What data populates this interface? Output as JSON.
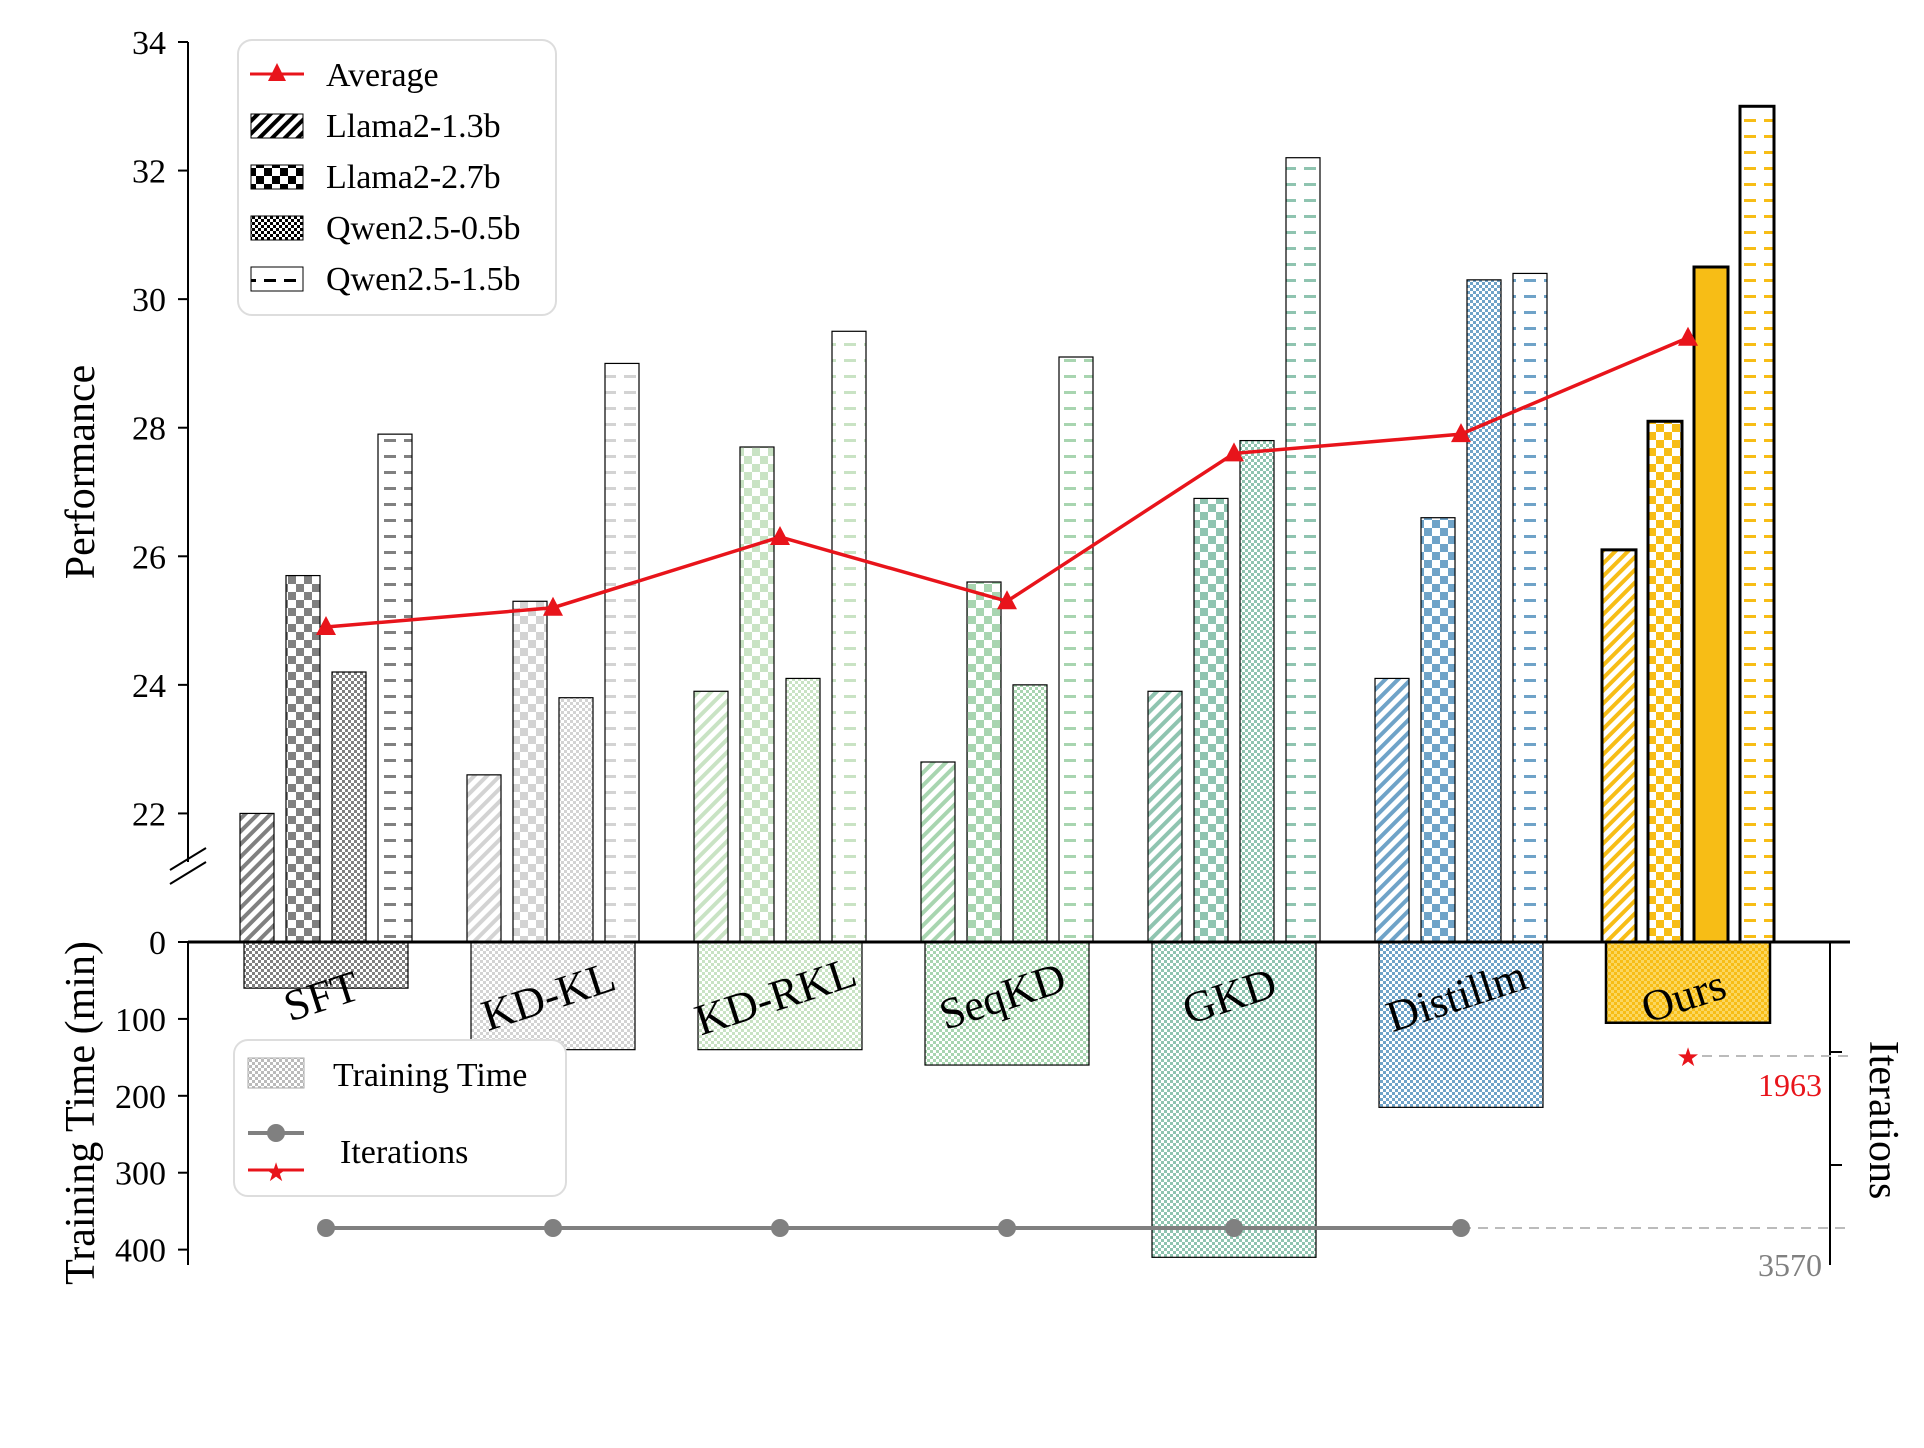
{
  "chart_data": {
    "type": "bar",
    "categories": [
      "SFT",
      "KD-KL",
      "KD-RKL",
      "SeqKD",
      "GKD",
      "Distillm",
      "Ours"
    ],
    "category_colors": [
      "#808080",
      "#d3d3d3",
      "#c9e3c4",
      "#a8d5b0",
      "#8fc4b0",
      "#6fa3c8",
      "#f7bd16"
    ],
    "series": [
      {
        "name": "Llama2-1.3b",
        "pattern": "diagonal-hatch",
        "values": [
          22.0,
          22.6,
          23.9,
          22.8,
          23.9,
          24.1,
          26.1
        ]
      },
      {
        "name": "Llama2-2.7b",
        "pattern": "checker",
        "values": [
          25.7,
          25.3,
          27.7,
          25.6,
          26.9,
          26.6,
          28.1
        ]
      },
      {
        "name": "Qwen2.5-0.5b",
        "pattern": "fine-checker",
        "values": [
          24.2,
          23.8,
          24.1,
          24.0,
          27.8,
          30.3,
          30.5
        ]
      },
      {
        "name": "Qwen2.5-1.5b",
        "pattern": "dashes",
        "values": [
          27.9,
          29.0,
          29.5,
          29.1,
          32.2,
          30.4,
          33.0
        ]
      }
    ],
    "average": {
      "name": "Average",
      "color": "#e8141b",
      "values": [
        24.9,
        25.2,
        26.3,
        25.3,
        27.6,
        27.9,
        29.4
      ]
    },
    "performance_axis": {
      "label": "Performance",
      "range": [
        20.0,
        34
      ],
      "ticks": [
        22,
        24,
        26,
        28,
        30,
        32,
        34
      ]
    },
    "training_time": {
      "label": "Training Time (min)",
      "legend_name": "Training Time",
      "values": [
        60,
        140,
        140,
        160,
        410,
        215,
        105
      ],
      "range": [
        0,
        400
      ],
      "ticks": [
        0,
        100,
        200,
        300,
        400
      ]
    },
    "iterations": {
      "label": "Iterations",
      "baseline": {
        "name": "Iterations",
        "value": 3570,
        "label": "3570",
        "color": "#808080",
        "categories": [
          "SFT",
          "KD-KL",
          "KD-RKL",
          "SeqKD",
          "GKD",
          "Distillm"
        ]
      },
      "ours": {
        "value": 1963,
        "label": "1963",
        "color": "#e8141b",
        "category": "Ours"
      }
    },
    "legend_placement": "top-left",
    "grid": false
  }
}
